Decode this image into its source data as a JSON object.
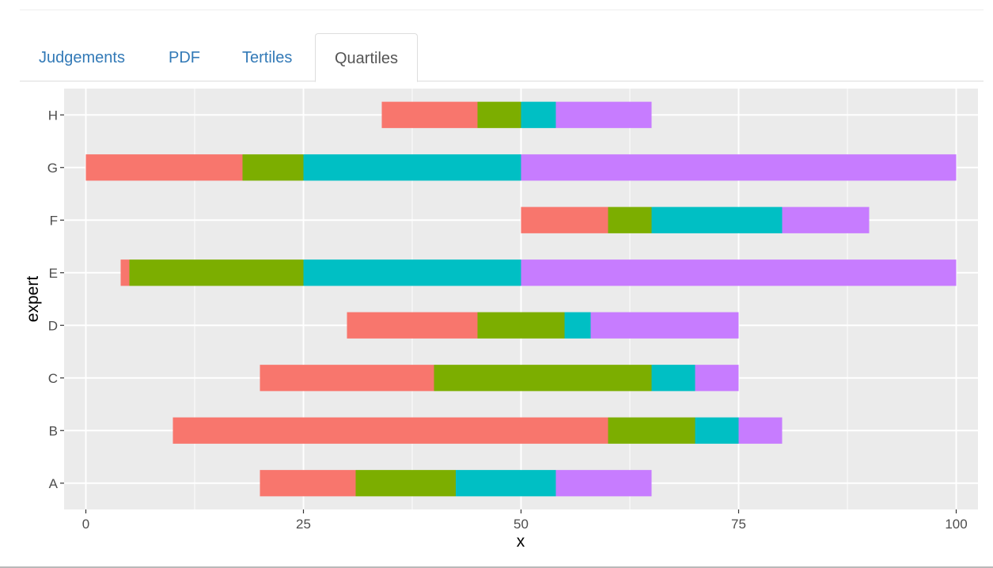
{
  "tabs": [
    {
      "label": "Judgements",
      "active": false
    },
    {
      "label": "PDF",
      "active": false
    },
    {
      "label": "Tertiles",
      "active": false
    },
    {
      "label": "Quartiles",
      "active": true
    }
  ],
  "chart_data": {
    "type": "bar",
    "orientation": "horizontal-stacked",
    "title": "",
    "xlabel": "x",
    "ylabel": "expert",
    "xlim": [
      -2.5,
      102.5
    ],
    "x_ticks": [
      0,
      25,
      50,
      75,
      100
    ],
    "grid": true,
    "legend": "none",
    "segment_colors": [
      "#F8766D",
      "#7CAE00",
      "#00BFC4",
      "#C77CFF"
    ],
    "categories": [
      "A",
      "B",
      "C",
      "D",
      "E",
      "F",
      "G",
      "H"
    ],
    "quartile_bounds": [
      {
        "expert": "A",
        "bounds": [
          20,
          31,
          42.5,
          54,
          65
        ]
      },
      {
        "expert": "B",
        "bounds": [
          10,
          60,
          70,
          75,
          80
        ]
      },
      {
        "expert": "C",
        "bounds": [
          20,
          40,
          65,
          70,
          75
        ]
      },
      {
        "expert": "D",
        "bounds": [
          30,
          45,
          55,
          58,
          75
        ]
      },
      {
        "expert": "E",
        "bounds": [
          4,
          5,
          25,
          50,
          100
        ]
      },
      {
        "expert": "F",
        "bounds": [
          50,
          60,
          65,
          80,
          90
        ]
      },
      {
        "expert": "G",
        "bounds": [
          0,
          18,
          25,
          50,
          100
        ]
      },
      {
        "expert": "H",
        "bounds": [
          34,
          45,
          50,
          54,
          65
        ]
      }
    ]
  }
}
